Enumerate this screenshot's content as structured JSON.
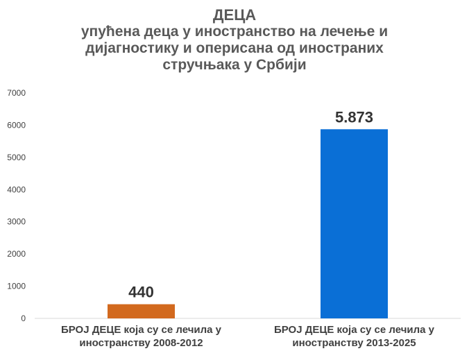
{
  "chart_data": {
    "type": "bar",
    "title": "ДЕЦА",
    "subtitle": "упућена деца у иностранство на лечење и дијагностику и оперисана од иностраних стручњака у Србији",
    "categories": [
      "БРОЈ ДЕЦЕ која су се лечила у иностранству 2008-2012",
      "БРОЈ ДЕЦЕ која су се лечила у иностранству 2013-2025"
    ],
    "values": [
      440,
      5873
    ],
    "data_labels": [
      "440",
      "5.873"
    ],
    "bar_colors": [
      "#D2691E",
      "#0A6FD6"
    ],
    "ylim": [
      0,
      7000
    ],
    "yticks": [
      "0",
      "1000",
      "2000",
      "3000",
      "4000",
      "5000",
      "6000",
      "7000"
    ],
    "xlabel": "",
    "ylabel": "",
    "grid": false,
    "legend": "none"
  }
}
